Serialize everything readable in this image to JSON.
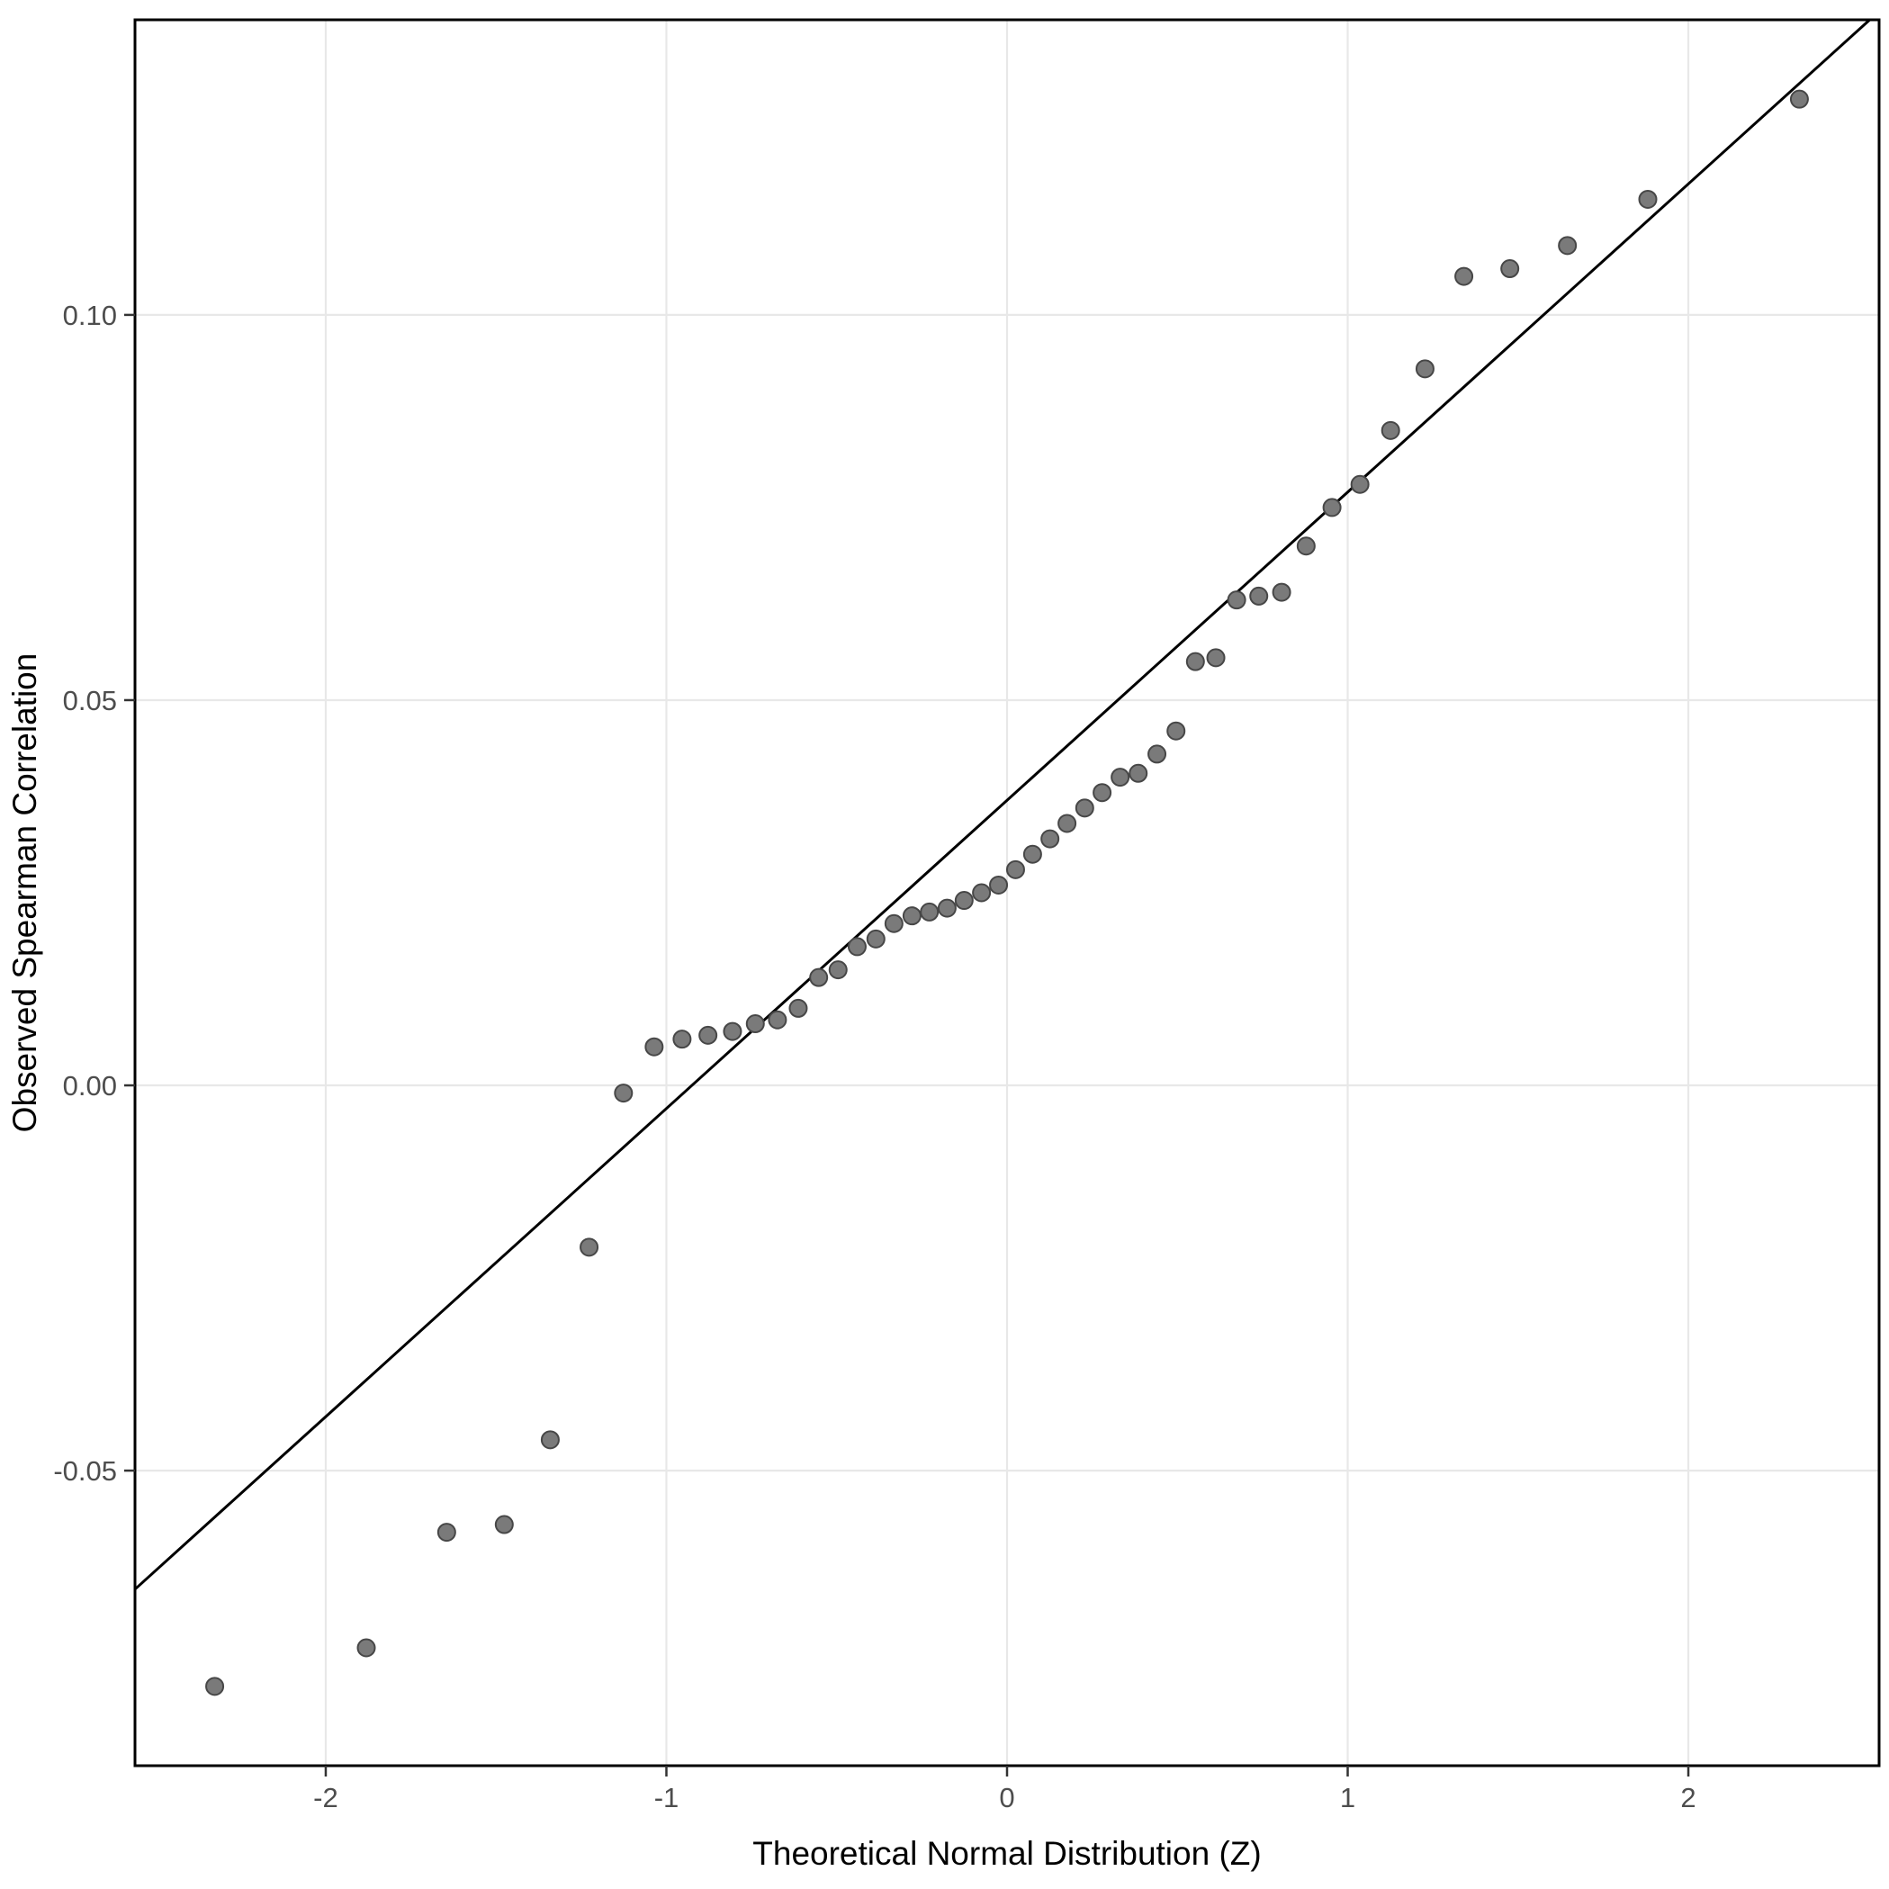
{
  "chart_data": {
    "type": "scatter",
    "title": "",
    "xlabel": "Theoretical Normal Distribution (Z)",
    "ylabel": "Observed Spearman Correlation",
    "xlim": [
      -2.56,
      2.56
    ],
    "ylim": [
      -0.0883,
      0.1383
    ],
    "x_ticks": [
      -2,
      -1,
      0,
      1,
      2
    ],
    "x_tick_labels": [
      "-2",
      "-1",
      "0",
      "1",
      "2"
    ],
    "y_ticks": [
      -0.05,
      0,
      0.05,
      0.1
    ],
    "y_tick_labels": [
      "-0.05",
      "0.00",
      "0.05",
      "0.10"
    ],
    "grid": "major",
    "legend": "none",
    "reference_line": {
      "slope": 0.04,
      "intercept": 0.037,
      "color": "#000000"
    },
    "series": [
      {
        "name": "qq-points",
        "points": [
          [
            -2.326,
            -0.078
          ],
          [
            -1.881,
            -0.073
          ],
          [
            -1.645,
            -0.058
          ],
          [
            -1.476,
            -0.057
          ],
          [
            -1.341,
            -0.046
          ],
          [
            -1.227,
            -0.021
          ],
          [
            -1.126,
            -0.001
          ],
          [
            -1.036,
            0.005
          ],
          [
            -0.954,
            0.006
          ],
          [
            -0.878,
            0.0065
          ],
          [
            -0.806,
            0.007
          ],
          [
            -0.739,
            0.008
          ],
          [
            -0.674,
            0.0085
          ],
          [
            -0.613,
            0.01
          ],
          [
            -0.553,
            0.014
          ],
          [
            -0.496,
            0.015
          ],
          [
            -0.44,
            0.018
          ],
          [
            -0.385,
            0.019
          ],
          [
            -0.332,
            0.021
          ],
          [
            -0.279,
            0.022
          ],
          [
            -0.228,
            0.0225
          ],
          [
            -0.176,
            0.023
          ],
          [
            -0.126,
            0.024
          ],
          [
            -0.075,
            0.025
          ],
          [
            -0.025,
            0.026
          ],
          [
            0.025,
            0.028
          ],
          [
            0.075,
            0.03
          ],
          [
            0.126,
            0.032
          ],
          [
            0.176,
            0.034
          ],
          [
            0.228,
            0.036
          ],
          [
            0.279,
            0.038
          ],
          [
            0.332,
            0.04
          ],
          [
            0.385,
            0.0405
          ],
          [
            0.44,
            0.043
          ],
          [
            0.496,
            0.046
          ],
          [
            0.553,
            0.055
          ],
          [
            0.613,
            0.0555
          ],
          [
            0.674,
            0.063
          ],
          [
            0.739,
            0.0635
          ],
          [
            0.806,
            0.064
          ],
          [
            0.878,
            0.07
          ],
          [
            0.954,
            0.075
          ],
          [
            1.036,
            0.078
          ],
          [
            1.126,
            0.085
          ],
          [
            1.227,
            0.093
          ],
          [
            1.341,
            0.105
          ],
          [
            1.476,
            0.106
          ],
          [
            1.645,
            0.109
          ],
          [
            1.881,
            0.115
          ],
          [
            2.326,
            0.128
          ]
        ]
      }
    ],
    "style": {
      "point_fill": "#7a7a7a",
      "point_stroke": "#474747",
      "point_radius": 9.5,
      "grid_color": "#E8E8E8",
      "panel_border_color": "#000000",
      "tick_color": "#333333",
      "tick_label_color": "#4D4D4D",
      "axis_title_color": "#000000",
      "background": "#FFFFFF"
    }
  }
}
